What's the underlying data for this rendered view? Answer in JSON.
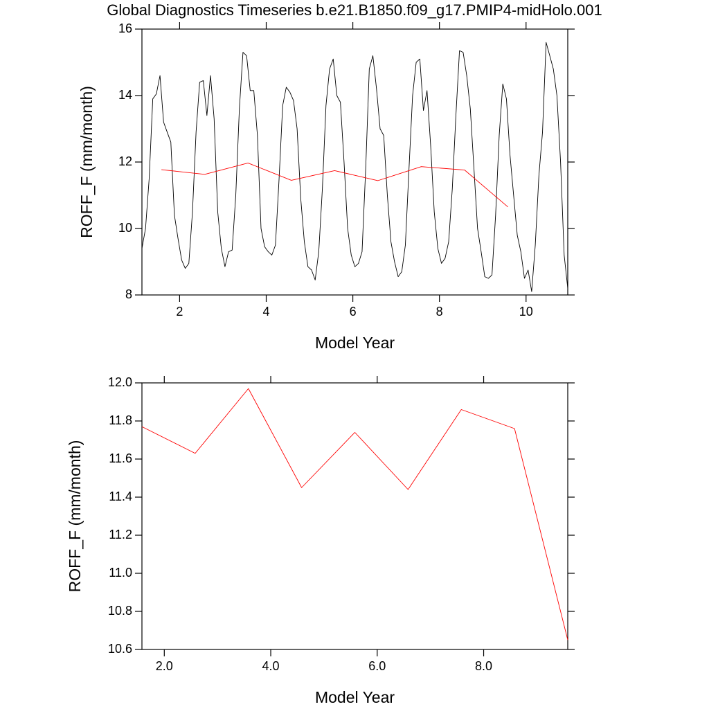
{
  "chart_data": [
    {
      "type": "line",
      "title": "Global Diagnostics Timeseries b.e21.B1850.f09_g17.PMIP4-midHolo.001",
      "ylabel": "ROFF_F (mm/month)",
      "xlabel": "Model Year",
      "xlim": [
        1.13,
        10.963
      ],
      "xticks": [
        2,
        4,
        6,
        8,
        10
      ],
      "ylim": [
        8,
        16
      ],
      "yticks": [
        8,
        10,
        12,
        14,
        16
      ],
      "series": [
        {
          "color": "#000000",
          "x": [
            1.13,
            1.213,
            1.297,
            1.38,
            1.463,
            1.547,
            1.63,
            1.713,
            1.797,
            1.88,
            1.963,
            2.047,
            2.13,
            2.213,
            2.297,
            2.38,
            2.463,
            2.547,
            2.63,
            2.713,
            2.797,
            2.88,
            2.963,
            3.047,
            3.13,
            3.213,
            3.297,
            3.38,
            3.463,
            3.547,
            3.63,
            3.713,
            3.797,
            3.88,
            3.963,
            4.047,
            4.13,
            4.213,
            4.297,
            4.38,
            4.463,
            4.547,
            4.63,
            4.713,
            4.797,
            4.88,
            4.963,
            5.047,
            5.13,
            5.213,
            5.297,
            5.38,
            5.463,
            5.547,
            5.63,
            5.713,
            5.797,
            5.88,
            5.963,
            6.047,
            6.13,
            6.213,
            6.297,
            6.38,
            6.463,
            6.547,
            6.63,
            6.713,
            6.797,
            6.88,
            6.963,
            7.047,
            7.13,
            7.213,
            7.297,
            7.38,
            7.463,
            7.547,
            7.63,
            7.713,
            7.797,
            7.88,
            7.963,
            8.047,
            8.13,
            8.213,
            8.297,
            8.38,
            8.463,
            8.547,
            8.63,
            8.713,
            8.797,
            8.88,
            8.963,
            9.047,
            9.13,
            9.213,
            9.297,
            9.38,
            9.463,
            9.547,
            9.63,
            9.713,
            9.797,
            9.88,
            9.963,
            10.047,
            10.13,
            10.213,
            10.297,
            10.38,
            10.463,
            10.547,
            10.63,
            10.713,
            10.797,
            10.88,
            10.963
          ],
          "values": [
            9.4,
            10.0,
            11.5,
            13.9,
            14.05,
            14.6,
            13.2,
            12.9,
            12.6,
            10.4,
            9.7,
            9.05,
            8.8,
            8.95,
            10.5,
            12.9,
            14.4,
            14.45,
            13.4,
            14.6,
            13.3,
            10.5,
            9.4,
            8.85,
            9.3,
            9.35,
            11.0,
            13.6,
            15.3,
            15.2,
            14.15,
            14.15,
            12.8,
            10.0,
            9.45,
            9.3,
            9.2,
            9.5,
            11.5,
            13.7,
            14.25,
            14.1,
            13.85,
            13.0,
            10.9,
            9.6,
            8.85,
            8.75,
            8.45,
            9.3,
            11.2,
            13.7,
            14.8,
            15.1,
            14.0,
            13.8,
            12.0,
            10.0,
            9.2,
            8.85,
            8.95,
            9.3,
            11.8,
            14.8,
            15.2,
            14.2,
            13.0,
            12.8,
            11.0,
            9.6,
            9.0,
            8.55,
            8.7,
            9.5,
            11.8,
            14.0,
            15.0,
            15.1,
            13.55,
            14.15,
            12.5,
            10.5,
            9.4,
            8.95,
            9.1,
            9.6,
            11.2,
            13.4,
            15.35,
            15.3,
            14.6,
            13.6,
            11.8,
            10.0,
            9.3,
            8.55,
            8.5,
            8.6,
            10.4,
            12.8,
            14.35,
            13.9,
            12.2,
            11.0,
            9.8,
            9.3,
            8.5,
            8.75,
            8.1,
            9.5,
            11.6,
            12.9,
            15.6,
            15.2,
            14.8,
            14.0,
            12.0,
            9.2,
            8.2
          ]
        },
        {
          "color": "#ff0000",
          "x": [
            1.58,
            2.58,
            3.58,
            4.58,
            5.58,
            6.58,
            7.58,
            8.58,
            9.58
          ],
          "values": [
            11.77,
            11.63,
            11.97,
            11.45,
            11.74,
            11.44,
            11.86,
            11.76,
            10.65
          ]
        }
      ]
    },
    {
      "type": "line",
      "ylabel": "ROFF_F (mm/month)",
      "xlabel": "Model Year",
      "xlim": [
        1.58,
        9.58
      ],
      "xticks": [
        {
          "value": 2,
          "label": "2.0"
        },
        {
          "value": 4,
          "label": "4.0"
        },
        {
          "value": 6,
          "label": "6.0"
        },
        {
          "value": 8,
          "label": "8.0"
        }
      ],
      "ylim": [
        10.6,
        12.0
      ],
      "yticks": [
        {
          "value": 12,
          "label": "12.0"
        },
        11.8,
        11.6,
        11.4,
        11.2,
        {
          "value": 11,
          "label": "11.0"
        },
        10.8,
        10.6
      ],
      "series": [
        {
          "color": "#ff0000",
          "x": [
            1.58,
            2.58,
            3.58,
            4.58,
            5.58,
            6.58,
            7.58,
            8.58,
            9.58
          ],
          "values": [
            11.77,
            11.63,
            11.97,
            11.45,
            11.74,
            11.44,
            11.86,
            11.76,
            10.65
          ]
        }
      ]
    }
  ]
}
